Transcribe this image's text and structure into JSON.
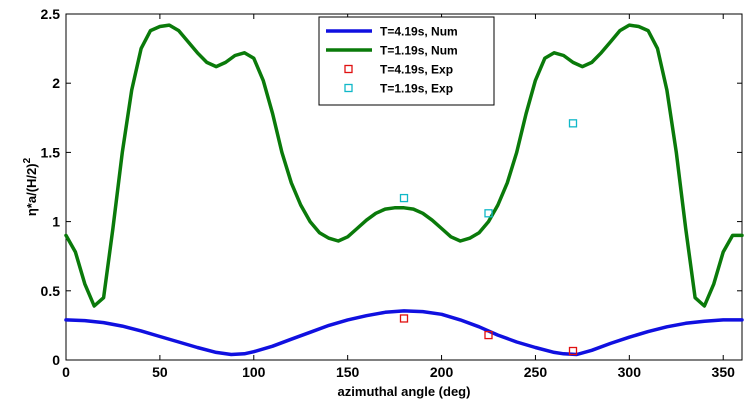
{
  "chart_data": {
    "type": "line",
    "title": "",
    "xlabel": "azimuthal angle (deg)",
    "ylabel_base": "η*a/(H/2)",
    "ylabel_sup": "2",
    "xlim": [
      0,
      360
    ],
    "ylim": [
      0,
      2.5
    ],
    "xticks": [
      0,
      50,
      100,
      150,
      200,
      250,
      300,
      350
    ],
    "yticks": [
      0,
      0.5,
      1,
      1.5,
      2,
      2.5
    ],
    "ytick_labels": [
      "0",
      "0.5",
      "1",
      "1.5",
      "2",
      "2.5"
    ],
    "grid": false,
    "legend_position": "top-center",
    "series": [
      {
        "name": "T=4.19s, Num",
        "kind": "line",
        "color": "#1010e0",
        "x": [
          0,
          10,
          20,
          30,
          40,
          50,
          60,
          70,
          80,
          88,
          95,
          100,
          110,
          120,
          130,
          140,
          150,
          160,
          170,
          180,
          190,
          200,
          210,
          220,
          230,
          240,
          250,
          260,
          265,
          272,
          280,
          290,
          300,
          310,
          320,
          330,
          340,
          350,
          360
        ],
        "y": [
          0.29,
          0.285,
          0.27,
          0.245,
          0.21,
          0.17,
          0.13,
          0.09,
          0.055,
          0.04,
          0.045,
          0.06,
          0.1,
          0.15,
          0.2,
          0.25,
          0.29,
          0.32,
          0.345,
          0.355,
          0.35,
          0.33,
          0.29,
          0.24,
          0.18,
          0.13,
          0.09,
          0.055,
          0.045,
          0.04,
          0.07,
          0.12,
          0.165,
          0.205,
          0.24,
          0.265,
          0.28,
          0.29,
          0.29
        ]
      },
      {
        "name": "T=1.19s, Num",
        "kind": "line",
        "color": "#0a7a0a",
        "x": [
          0,
          5,
          10,
          15,
          20,
          25,
          30,
          35,
          40,
          45,
          50,
          55,
          60,
          65,
          70,
          75,
          80,
          85,
          90,
          95,
          100,
          105,
          110,
          115,
          120,
          125,
          130,
          135,
          140,
          145,
          150,
          155,
          160,
          165,
          170,
          175,
          180,
          185,
          190,
          195,
          200,
          205,
          210,
          215,
          220,
          225,
          230,
          235,
          240,
          245,
          250,
          255,
          260,
          265,
          270,
          275,
          280,
          285,
          290,
          295,
          300,
          305,
          310,
          315,
          320,
          325,
          330,
          335,
          340,
          345,
          350,
          355,
          360
        ],
        "y": [
          0.9,
          0.78,
          0.55,
          0.39,
          0.45,
          0.95,
          1.5,
          1.95,
          2.25,
          2.38,
          2.41,
          2.42,
          2.38,
          2.3,
          2.22,
          2.15,
          2.12,
          2.15,
          2.2,
          2.22,
          2.18,
          2.02,
          1.78,
          1.5,
          1.28,
          1.12,
          1.0,
          0.92,
          0.88,
          0.86,
          0.89,
          0.95,
          1.01,
          1.06,
          1.09,
          1.1,
          1.1,
          1.09,
          1.06,
          1.01,
          0.95,
          0.89,
          0.86,
          0.88,
          0.92,
          1.0,
          1.12,
          1.28,
          1.5,
          1.78,
          2.02,
          2.18,
          2.22,
          2.2,
          2.15,
          2.12,
          2.15,
          2.22,
          2.3,
          2.38,
          2.42,
          2.41,
          2.38,
          2.25,
          1.95,
          1.5,
          0.95,
          0.45,
          0.39,
          0.55,
          0.78,
          0.9,
          0.9
        ]
      },
      {
        "name": "T=4.19s, Exp",
        "kind": "scatter",
        "color": "#e01010",
        "x": [
          180,
          225,
          270
        ],
        "y": [
          0.3,
          0.18,
          0.065
        ]
      },
      {
        "name": "T=1.19s, Exp",
        "kind": "scatter",
        "color": "#10b8c8",
        "x": [
          180,
          225,
          270
        ],
        "y": [
          1.17,
          1.06,
          1.71
        ]
      }
    ]
  }
}
